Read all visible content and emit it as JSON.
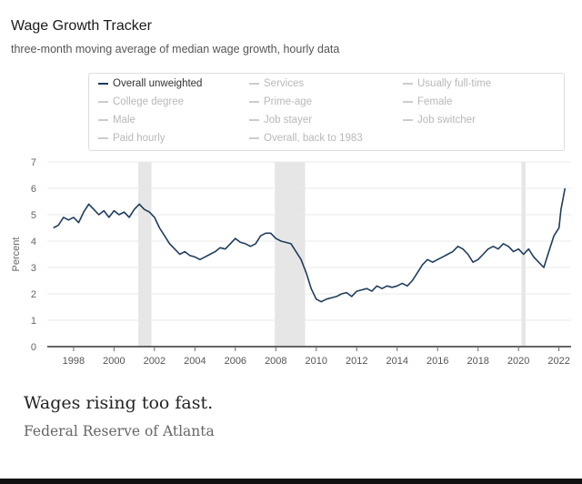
{
  "chart_data": {
    "type": "line",
    "title": "Wage Growth Tracker",
    "subtitle": "three-month moving average of median wage growth, hourly data",
    "xlabel": "",
    "ylabel": "Percent",
    "xlim": [
      1996.7,
      2022.6
    ],
    "ylim": [
      0,
      7
    ],
    "yticks": [
      0,
      1,
      2,
      3,
      4,
      5,
      6,
      7
    ],
    "xticks": [
      1998,
      2000,
      2002,
      2004,
      2006,
      2008,
      2010,
      2012,
      2014,
      2016,
      2018,
      2020,
      2022
    ],
    "recessions": [
      [
        2001.2,
        2001.85
      ],
      [
        2007.95,
        2009.45
      ],
      [
        2020.15,
        2020.35
      ]
    ],
    "legend": [
      {
        "label": "Overall unweighted",
        "active": true
      },
      {
        "label": "Services",
        "active": false
      },
      {
        "label": "Usually full-time",
        "active": false
      },
      {
        "label": "College degree",
        "active": false
      },
      {
        "label": "Prime-age",
        "active": false
      },
      {
        "label": "Female",
        "active": false
      },
      {
        "label": "Male",
        "active": false
      },
      {
        "label": "Job stayer",
        "active": false
      },
      {
        "label": "Job switcher",
        "active": false
      },
      {
        "label": "Paid hourly",
        "active": false
      },
      {
        "label": "Overall, back to 1983",
        "active": false
      }
    ],
    "series": [
      {
        "name": "Overall unweighted",
        "color": "#1f3d5c",
        "points": [
          [
            1997.0,
            4.5
          ],
          [
            1997.25,
            4.6
          ],
          [
            1997.5,
            4.9
          ],
          [
            1997.75,
            4.8
          ],
          [
            1998.0,
            4.9
          ],
          [
            1998.25,
            4.7
          ],
          [
            1998.5,
            5.1
          ],
          [
            1998.75,
            5.4
          ],
          [
            1999.0,
            5.2
          ],
          [
            1999.25,
            5.0
          ],
          [
            1999.5,
            5.15
          ],
          [
            1999.75,
            4.9
          ],
          [
            2000.0,
            5.15
          ],
          [
            2000.25,
            5.0
          ],
          [
            2000.5,
            5.1
          ],
          [
            2000.75,
            4.9
          ],
          [
            2001.0,
            5.2
          ],
          [
            2001.25,
            5.4
          ],
          [
            2001.5,
            5.2
          ],
          [
            2001.75,
            5.1
          ],
          [
            2002.0,
            4.9
          ],
          [
            2002.25,
            4.5
          ],
          [
            2002.5,
            4.2
          ],
          [
            2002.75,
            3.9
          ],
          [
            2003.0,
            3.7
          ],
          [
            2003.25,
            3.5
          ],
          [
            2003.5,
            3.6
          ],
          [
            2003.75,
            3.45
          ],
          [
            2004.0,
            3.4
          ],
          [
            2004.25,
            3.3
          ],
          [
            2004.5,
            3.4
          ],
          [
            2004.75,
            3.5
          ],
          [
            2005.0,
            3.6
          ],
          [
            2005.25,
            3.75
          ],
          [
            2005.5,
            3.7
          ],
          [
            2005.75,
            3.9
          ],
          [
            2006.0,
            4.1
          ],
          [
            2006.25,
            3.95
          ],
          [
            2006.5,
            3.9
          ],
          [
            2006.75,
            3.8
          ],
          [
            2007.0,
            3.9
          ],
          [
            2007.25,
            4.2
          ],
          [
            2007.5,
            4.3
          ],
          [
            2007.75,
            4.3
          ],
          [
            2008.0,
            4.1
          ],
          [
            2008.25,
            4.0
          ],
          [
            2008.5,
            3.95
          ],
          [
            2008.75,
            3.9
          ],
          [
            2009.0,
            3.6
          ],
          [
            2009.25,
            3.3
          ],
          [
            2009.5,
            2.8
          ],
          [
            2009.75,
            2.2
          ],
          [
            2010.0,
            1.8
          ],
          [
            2010.25,
            1.7
          ],
          [
            2010.5,
            1.8
          ],
          [
            2010.75,
            1.85
          ],
          [
            2011.0,
            1.9
          ],
          [
            2011.25,
            2.0
          ],
          [
            2011.5,
            2.05
          ],
          [
            2011.75,
            1.9
          ],
          [
            2012.0,
            2.1
          ],
          [
            2012.25,
            2.15
          ],
          [
            2012.5,
            2.2
          ],
          [
            2012.75,
            2.1
          ],
          [
            2013.0,
            2.3
          ],
          [
            2013.25,
            2.2
          ],
          [
            2013.5,
            2.3
          ],
          [
            2013.75,
            2.25
          ],
          [
            2014.0,
            2.3
          ],
          [
            2014.25,
            2.4
          ],
          [
            2014.5,
            2.3
          ],
          [
            2014.75,
            2.5
          ],
          [
            2015.0,
            2.8
          ],
          [
            2015.25,
            3.1
          ],
          [
            2015.5,
            3.3
          ],
          [
            2015.75,
            3.2
          ],
          [
            2016.0,
            3.3
          ],
          [
            2016.25,
            3.4
          ],
          [
            2016.5,
            3.5
          ],
          [
            2016.75,
            3.6
          ],
          [
            2017.0,
            3.8
          ],
          [
            2017.25,
            3.7
          ],
          [
            2017.5,
            3.5
          ],
          [
            2017.75,
            3.2
          ],
          [
            2018.0,
            3.3
          ],
          [
            2018.25,
            3.5
          ],
          [
            2018.5,
            3.7
          ],
          [
            2018.75,
            3.8
          ],
          [
            2019.0,
            3.7
          ],
          [
            2019.25,
            3.9
          ],
          [
            2019.5,
            3.8
          ],
          [
            2019.75,
            3.6
          ],
          [
            2020.0,
            3.7
          ],
          [
            2020.25,
            3.5
          ],
          [
            2020.5,
            3.7
          ],
          [
            2020.75,
            3.4
          ],
          [
            2021.0,
            3.2
          ],
          [
            2021.25,
            3.0
          ],
          [
            2021.5,
            3.6
          ],
          [
            2021.75,
            4.2
          ],
          [
            2022.0,
            4.5
          ],
          [
            2022.1,
            5.2
          ],
          [
            2022.2,
            5.6
          ],
          [
            2022.3,
            6.0
          ]
        ]
      }
    ]
  },
  "caption": "Wages rising too fast.",
  "source": "Federal Reserve of Atlanta"
}
